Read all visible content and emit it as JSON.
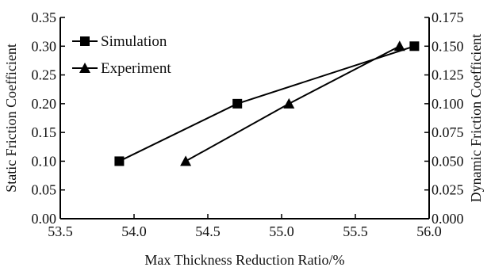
{
  "chart_data": {
    "type": "line",
    "xlabel": "Max Thickness Reduction Ratio/%",
    "ylabel_left": "Static Friction Coefficient",
    "ylabel_right": "Dynamic Friction Coefficient",
    "xlim": [
      53.5,
      56.0
    ],
    "ylim_left": [
      0.0,
      0.35
    ],
    "ylim_right": [
      0.0,
      0.175
    ],
    "x_ticks": [
      "53.5",
      "54.0",
      "54.5",
      "55.0",
      "55.5",
      "56.0"
    ],
    "y_left_ticks": [
      "0.00",
      "0.05",
      "0.10",
      "0.15",
      "0.20",
      "0.25",
      "0.30",
      "0.35"
    ],
    "y_right_ticks": [
      "0.000",
      "0.025",
      "0.050",
      "0.075",
      "0.100",
      "0.125",
      "0.150",
      "0.175"
    ],
    "grid": false,
    "legend_position": "top-left",
    "series": [
      {
        "name": "Simulation",
        "marker": "square",
        "axis": "left",
        "points": [
          {
            "x": 53.9,
            "y": 0.1
          },
          {
            "x": 54.7,
            "y": 0.2
          },
          {
            "x": 55.9,
            "y": 0.3
          }
        ]
      },
      {
        "name": "Experiment",
        "marker": "triangle",
        "axis": "left",
        "points": [
          {
            "x": 54.35,
            "y": 0.1
          },
          {
            "x": 55.05,
            "y": 0.2
          },
          {
            "x": 55.8,
            "y": 0.3
          }
        ]
      }
    ]
  }
}
